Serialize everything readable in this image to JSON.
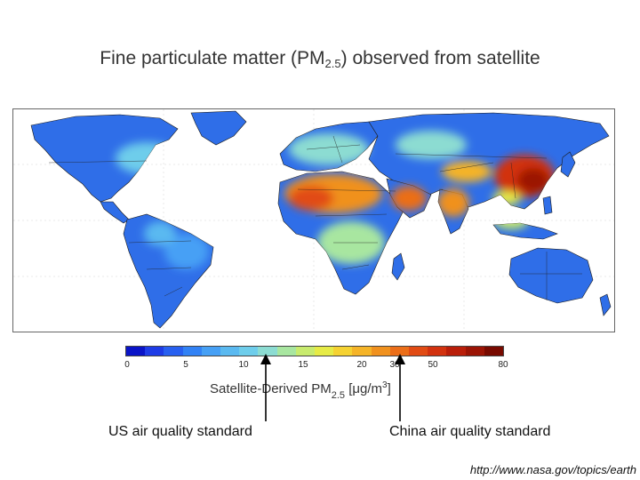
{
  "title": {
    "prefix": "Fine particulate matter (PM",
    "subscript": "2.5",
    "suffix": ") observed from satellite"
  },
  "colorbar": {
    "ticks": [
      "0",
      "5",
      "10",
      "15",
      "20",
      "30",
      "50",
      "80"
    ],
    "colors": [
      "#0a14c8",
      "#1e3ce6",
      "#2860f0",
      "#3282f5",
      "#46a0f5",
      "#5ab9f0",
      "#6ecdeb",
      "#8cdcd2",
      "#a8e6a0",
      "#c8eb6e",
      "#e6eb46",
      "#f5d232",
      "#f5b428",
      "#f0911e",
      "#eb6e19",
      "#e14b14",
      "#d2320f",
      "#b91e0a",
      "#9b1405",
      "#780a00"
    ],
    "label_prefix": "Satellite-Derived PM",
    "label_subscript": "2.5",
    "label_units": "[μg/m",
    "label_units_sup": "3",
    "label_close": "]"
  },
  "markers": {
    "us_label": "US air quality standard",
    "china_label": "China  air quality standard"
  },
  "source": "http://www.nasa.gov/topics/earth"
}
